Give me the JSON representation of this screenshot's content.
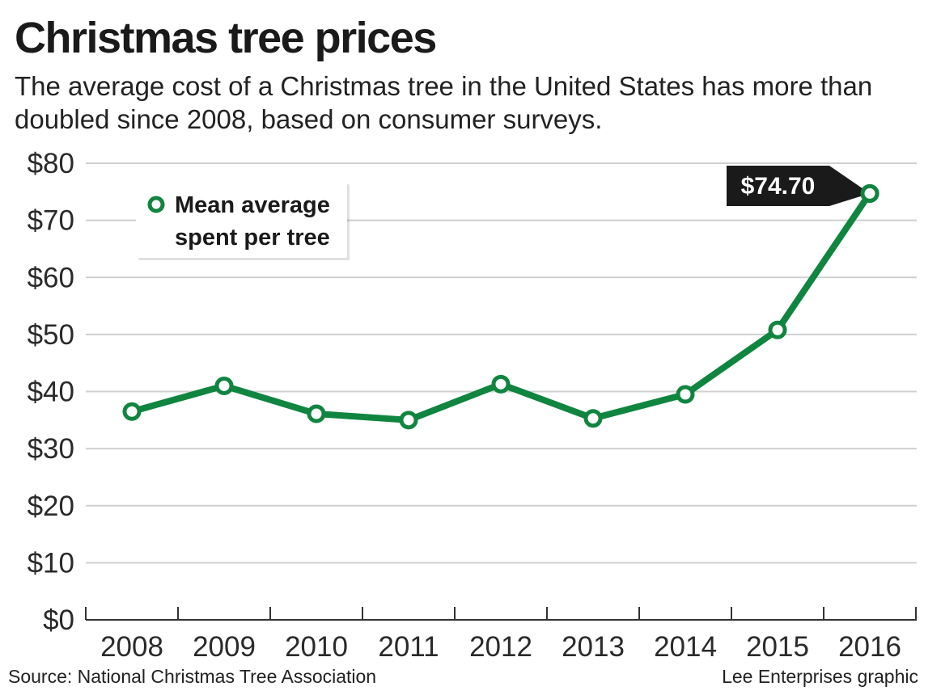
{
  "title": "Christmas tree prices",
  "subtitle": "The average cost of a Christmas tree in the United States has more than doubled since 2008, based on consumer surveys.",
  "source": "Source: National Christmas Tree Association",
  "credit": "Lee Enterprises graphic",
  "colors": {
    "line": "#108540",
    "callout_bg": "#1a1a1a",
    "callout_text": "#ffffff",
    "grid": "#cfcfcf"
  },
  "chart_data": {
    "type": "line",
    "categories": [
      "2008",
      "2009",
      "2010",
      "2011",
      "2012",
      "2013",
      "2014",
      "2015",
      "2016"
    ],
    "series": [
      {
        "name": "Mean average spent per tree",
        "values": [
          36.5,
          41.0,
          36.1,
          35.0,
          41.3,
          35.3,
          39.5,
          50.8,
          74.7
        ]
      }
    ],
    "ylim": [
      0,
      80
    ],
    "yticks": [
      0,
      10,
      20,
      30,
      40,
      50,
      60,
      70,
      80
    ],
    "ytick_labels": [
      "$0",
      "$10",
      "$20",
      "$30",
      "$40",
      "$50",
      "$60",
      "$70",
      "$80"
    ],
    "legend": {
      "lines": [
        "Mean average",
        "spent per tree"
      ],
      "position": "top-left"
    },
    "annotation": {
      "text": "$74.70",
      "category": "2016",
      "value": 74.7
    },
    "grid": true,
    "xlabel": "",
    "ylabel": ""
  }
}
